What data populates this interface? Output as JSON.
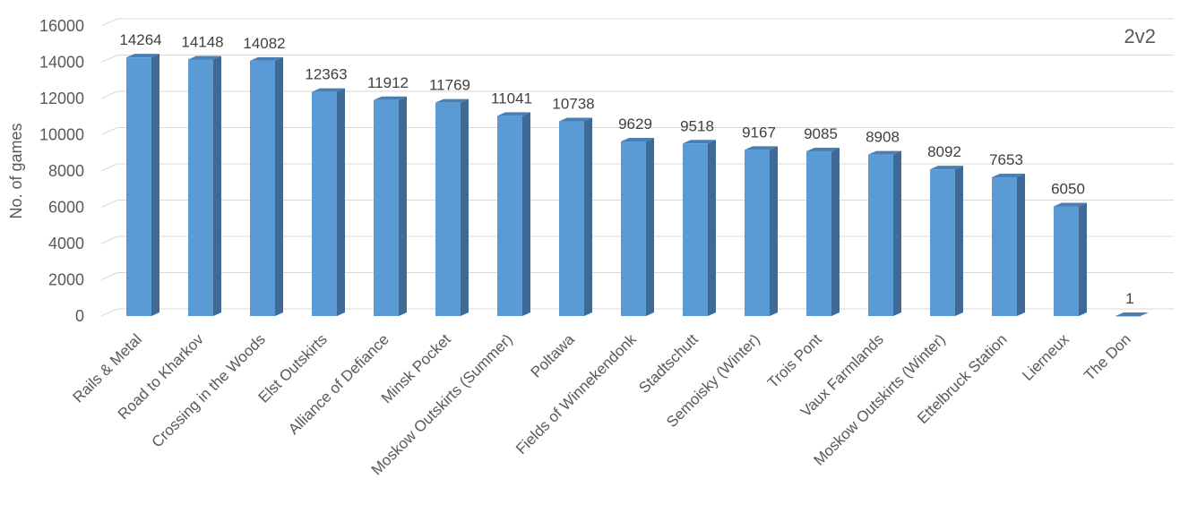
{
  "chart_data": {
    "type": "bar",
    "title": "2v2",
    "ylabel": "No. of games",
    "xlabel": "",
    "ylim": [
      0,
      16000
    ],
    "yticks": [
      0,
      2000,
      4000,
      6000,
      8000,
      10000,
      12000,
      14000,
      16000
    ],
    "grid": true,
    "categories": [
      "Rails & Metal",
      "Road to Kharkov",
      "Crossing in the Woods",
      "Elst Outskirts",
      "Alliance of Defiance",
      "Minsk Pocket",
      "Moskow Outskirts (Summer)",
      "Poltawa",
      "Fields of Winnekendonk",
      "Stadtschutt",
      "Semoisky (Winter)",
      "Trois Pont",
      "Vaux Farmlands",
      "Moskow Outskirts (Winter)",
      "Ettelbruck Station",
      "Lierneux",
      "The Don"
    ],
    "values": [
      14264,
      14148,
      14082,
      12363,
      11912,
      11769,
      11041,
      10738,
      9629,
      9518,
      9167,
      9085,
      8908,
      8092,
      7653,
      6050,
      1
    ],
    "colors": {
      "front": "#5B9BD5",
      "side": "#3E6A95",
      "top": "#4A7FB4",
      "grid": "#D9D9D9"
    }
  }
}
